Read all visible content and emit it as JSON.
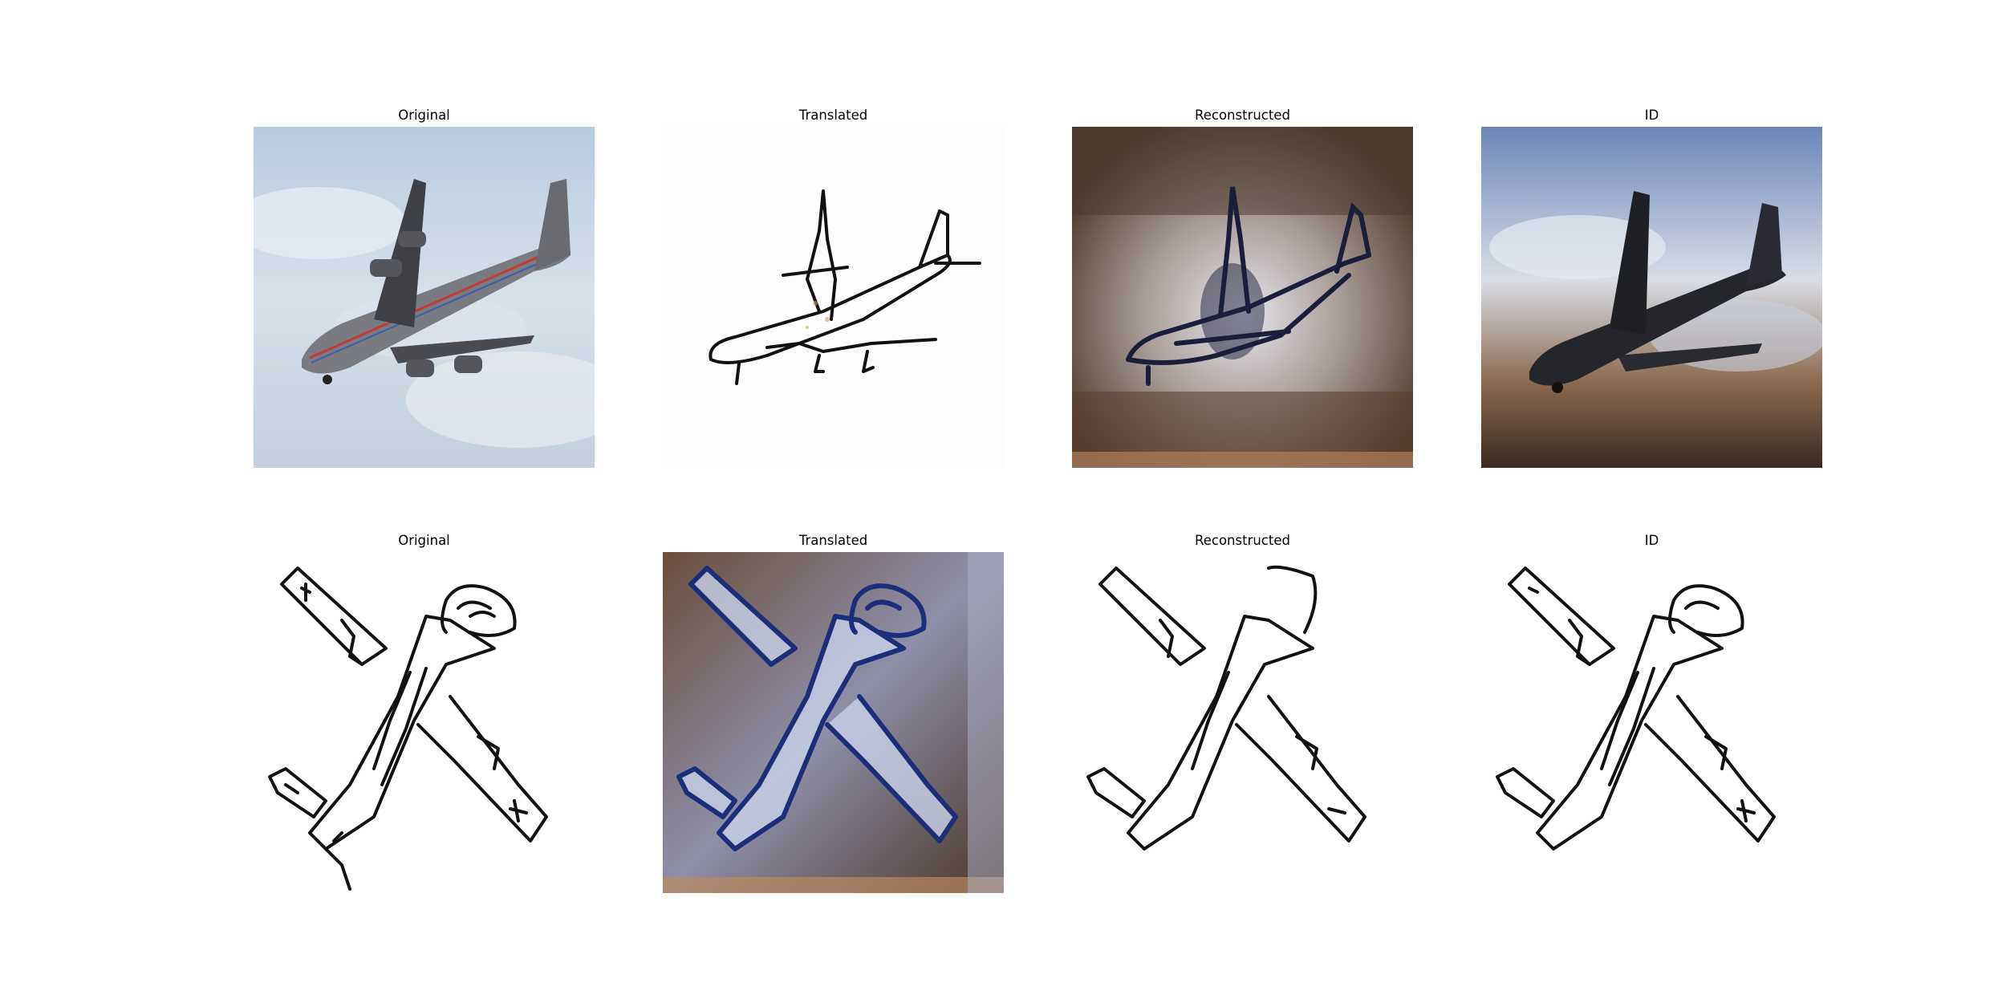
{
  "figure": {
    "rows": [
      {
        "panels": [
          {
            "title": "Original",
            "content": "photo of a cargo airplane in flight against clouds"
          },
          {
            "title": "Translated",
            "content": "line sketch of airplane, black strokes on white"
          },
          {
            "title": "Reconstructed",
            "content": "blurry reconstructed airplane photo, brown/blue tones"
          },
          {
            "title": "ID",
            "content": "blurry identity-mapped airplane photo, sky and brown tones"
          }
        ]
      },
      {
        "panels": [
          {
            "title": "Original",
            "content": "hand-drawn airplane sketch, black strokes on white"
          },
          {
            "title": "Translated",
            "content": "sketch rendered as blurry blue/brown photo"
          },
          {
            "title": "Reconstructed",
            "content": "reconstructed sketch, black strokes on white"
          },
          {
            "title": "ID",
            "content": "identity-mapped sketch, black strokes on white"
          }
        ]
      }
    ],
    "colors": {
      "sky": "#c9d6e6",
      "fuselage": "#6c6c70",
      "stroke": "#111111",
      "brown_bg": "#5a4030",
      "blue_tint": "#2a4a9a"
    }
  }
}
